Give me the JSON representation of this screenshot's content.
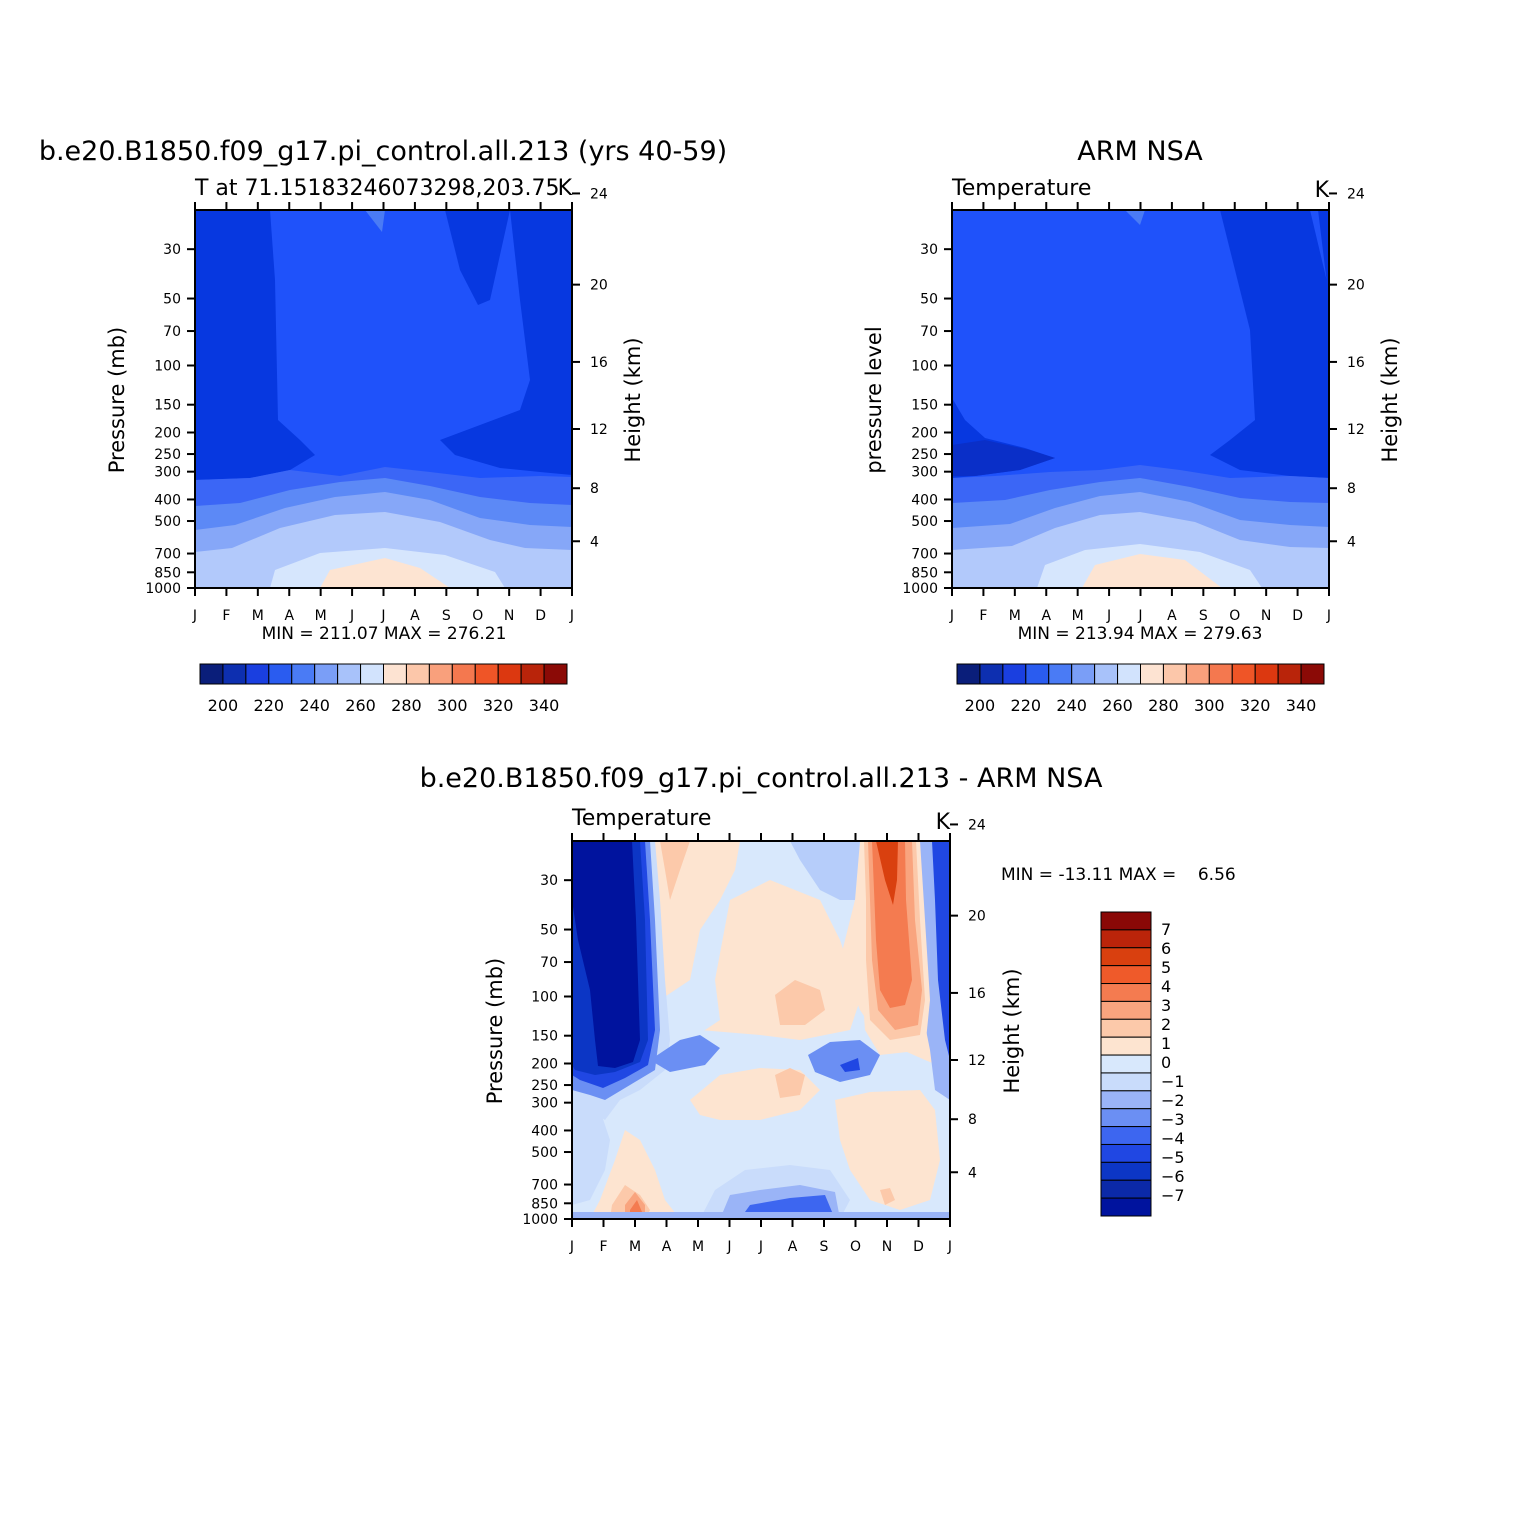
{
  "chart_data": [
    {
      "type": "heatmap",
      "title": "b.e20.B1850.f09_g17.pi_control.all.213 (yrs 40-59)",
      "subtitle": "T at 71.15183246073298,203.75",
      "units": "K",
      "ylabel": "Pressure (mb)",
      "ylabel_right": "Height (km)",
      "x_ticks": [
        "J",
        "F",
        "M",
        "A",
        "M",
        "J",
        "J",
        "A",
        "S",
        "O",
        "N",
        "D",
        "J"
      ],
      "y_ticks": [
        "30",
        "50",
        "70",
        "100",
        "150",
        "200",
        "250",
        "300",
        "400",
        "500",
        "700",
        "850",
        "1000"
      ],
      "y_ticks_right": [
        "24",
        "20",
        "16",
        "12",
        "8",
        "4"
      ],
      "min": 211.07,
      "max": 276.21,
      "minmax_text": "MIN = 211.07 MAX = 276.21",
      "colorbar_levels": [
        190,
        200,
        210,
        220,
        230,
        240,
        250,
        260,
        270,
        280,
        290,
        300,
        310,
        320,
        330,
        340,
        350
      ],
      "colorbar_labels": [
        "200",
        "220",
        "240",
        "260",
        "280",
        "300",
        "320",
        "340"
      ],
      "grid": false
    },
    {
      "type": "heatmap",
      "title": "ARM NSA",
      "subtitle": "Temperature",
      "units": "K",
      "ylabel": "pressure level",
      "ylabel_right": "Height (km)",
      "x_ticks": [
        "J",
        "F",
        "M",
        "A",
        "M",
        "J",
        "J",
        "A",
        "S",
        "O",
        "N",
        "D",
        "J"
      ],
      "y_ticks": [
        "30",
        "50",
        "70",
        "100",
        "150",
        "200",
        "250",
        "300",
        "400",
        "500",
        "700",
        "850",
        "1000"
      ],
      "y_ticks_right": [
        "24",
        "20",
        "16",
        "12",
        "8",
        "4"
      ],
      "min": 213.94,
      "max": 279.63,
      "minmax_text": "MIN = 213.94 MAX = 279.63",
      "colorbar_levels": [
        190,
        200,
        210,
        220,
        230,
        240,
        250,
        260,
        270,
        280,
        290,
        300,
        310,
        320,
        330,
        340,
        350
      ],
      "colorbar_labels": [
        "200",
        "220",
        "240",
        "260",
        "280",
        "300",
        "320",
        "340"
      ],
      "grid": false
    },
    {
      "type": "heatmap",
      "title": "b.e20.B1850.f09_g17.pi_control.all.213 - ARM NSA",
      "subtitle": "Temperature",
      "units": "K",
      "ylabel": "Pressure (mb)",
      "ylabel_right": "Height (km)",
      "x_ticks": [
        "J",
        "F",
        "M",
        "A",
        "M",
        "J",
        "J",
        "A",
        "S",
        "O",
        "N",
        "D",
        "J"
      ],
      "y_ticks": [
        "30",
        "50",
        "70",
        "100",
        "150",
        "200",
        "250",
        "300",
        "400",
        "500",
        "700",
        "850",
        "1000"
      ],
      "y_ticks_right": [
        "24",
        "20",
        "16",
        "12",
        "8",
        "4"
      ],
      "min": -13.11,
      "max": 6.56,
      "minmax_text": "MIN = -13.11 MAX =    6.56",
      "colorbar_levels": [
        -8,
        -7,
        -6,
        -5,
        -4,
        -3,
        -2,
        -1,
        0,
        1,
        2,
        3,
        4,
        5,
        6,
        7,
        8
      ],
      "colorbar_labels": [
        "7",
        "6",
        "5",
        "4",
        "3",
        "2",
        "1",
        "0",
        "-1",
        "-2",
        "-3",
        "-4",
        "-5",
        "-6",
        "-7"
      ],
      "grid": false
    }
  ],
  "colors": {
    "temperature_scale": [
      "#0a1e7a",
      "#0d2fb0",
      "#1a3fe0",
      "#2a5cf0",
      "#4a7bf5",
      "#7a9ef7",
      "#a8c2fa",
      "#d2e3fd",
      "#fde3d2",
      "#fcc7aa",
      "#f9a07c",
      "#f4784f",
      "#ef5527",
      "#dc3810",
      "#b9240a",
      "#8b0a06"
    ],
    "difference_scale": [
      "#00139e",
      "#0b29a8",
      "#0c36c5",
      "#2047e3",
      "#3d66f0",
      "#6b8ff3",
      "#9ab4f7",
      "#c9dcfb",
      "#d8e8fc",
      "#fde4d0",
      "#fcc9aa",
      "#f9a47e",
      "#f47b50",
      "#ef5a2a",
      "#d9400f",
      "#bb240a",
      "#8a0806"
    ]
  }
}
